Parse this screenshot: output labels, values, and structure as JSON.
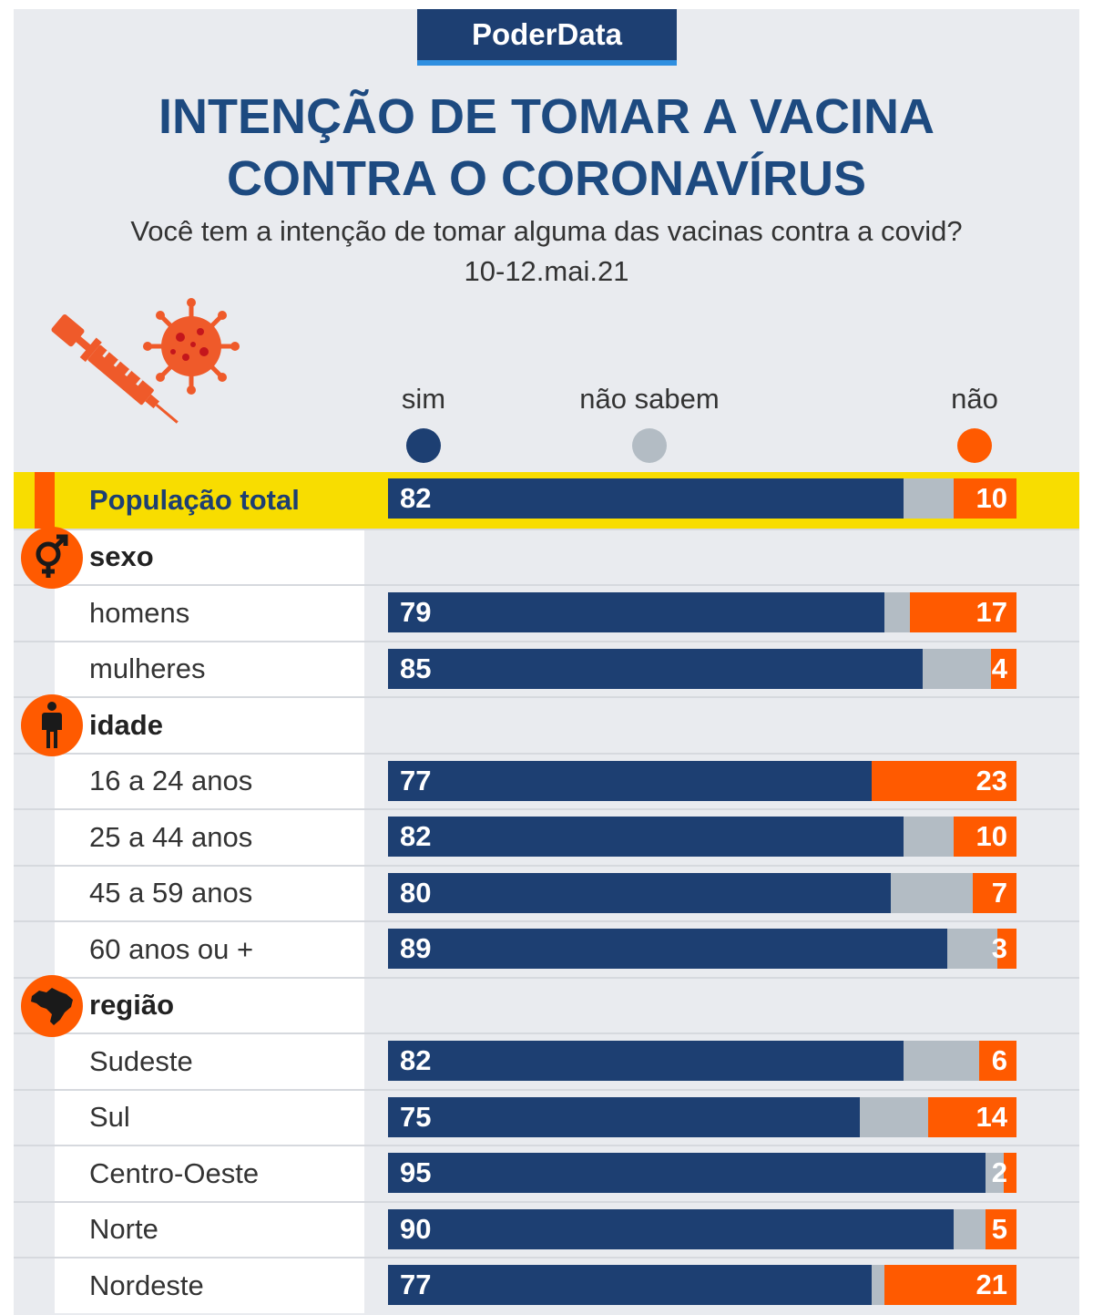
{
  "brand": "PoderData",
  "title_lines": [
    "INTENÇÃO DE TOMAR A VACINA",
    "CONTRA O CORONAVÍRUS"
  ],
  "subtitle": "Você tem a intenção de tomar alguma das vacinas contra a covid?",
  "date": "10-12.mai.21",
  "colors": {
    "sim": "#1d3f72",
    "nao_sabem": "#b3bcc4",
    "nao": "#ff5a00",
    "highlight": "#f8dd00",
    "title": "#1d4a80"
  },
  "chart_data": {
    "type": "bar",
    "orientation": "horizontal",
    "stacked": true,
    "legend_placement": "top",
    "series_names": [
      "sim",
      "não sabem",
      "não"
    ],
    "rows": [
      {
        "kind": "total",
        "label": "População total",
        "sim": 82,
        "nao": 10
      },
      {
        "kind": "category",
        "label": "sexo",
        "icon": "gender-icon"
      },
      {
        "kind": "data",
        "label": "homens",
        "sim": 79,
        "nao": 17
      },
      {
        "kind": "data",
        "label": "mulheres",
        "sim": 85,
        "nao": 4
      },
      {
        "kind": "category",
        "label": "idade",
        "icon": "person-icon"
      },
      {
        "kind": "data",
        "label": "16 a 24 anos",
        "sim": 77,
        "nao": 23
      },
      {
        "kind": "data",
        "label": "25 a 44 anos",
        "sim": 82,
        "nao": 10
      },
      {
        "kind": "data",
        "label": "45 a 59 anos",
        "sim": 80,
        "nao": 7
      },
      {
        "kind": "data",
        "label": "60 anos ou +",
        "sim": 89,
        "nao": 3
      },
      {
        "kind": "category",
        "label": "região",
        "icon": "brazil-map-icon"
      },
      {
        "kind": "data",
        "label": "Sudeste",
        "sim": 82,
        "nao": 6
      },
      {
        "kind": "data",
        "label": "Sul",
        "sim": 75,
        "nao": 14
      },
      {
        "kind": "data",
        "label": "Centro-Oeste",
        "sim": 95,
        "nao": 2
      },
      {
        "kind": "data",
        "label": "Norte",
        "sim": 90,
        "nao": 5
      },
      {
        "kind": "data",
        "label": "Nordeste",
        "sim": 77,
        "nao": 21
      }
    ]
  }
}
